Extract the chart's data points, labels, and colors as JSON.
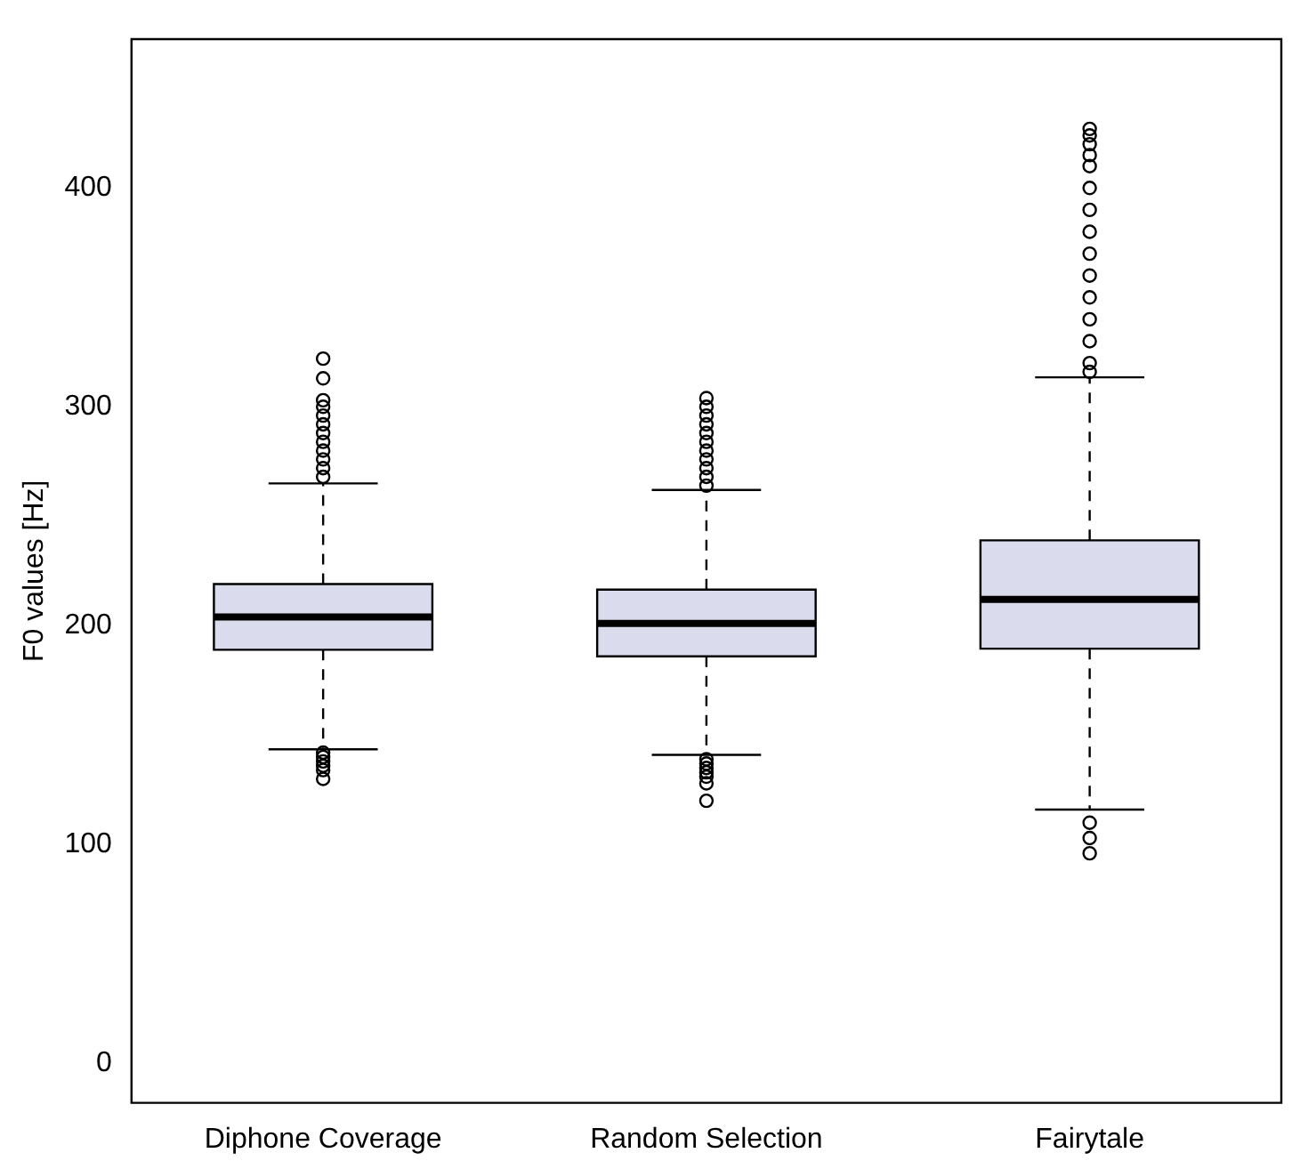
{
  "chart_data": {
    "type": "box",
    "ylabel": "F0 values [Hz]",
    "categories": [
      "Diphone Coverage",
      "Random Selection",
      "Fairytale"
    ],
    "color": "#dadcee",
    "ylim": [
      -18,
      468
    ],
    "yticks": [
      0,
      100,
      200,
      300,
      400
    ],
    "grid": false,
    "legend": false,
    "boxes": [
      {
        "low": 143.5,
        "q1": 189,
        "median": 204,
        "q3": 219,
        "high": 265,
        "outliers": [
          322,
          313,
          303,
          300,
          296,
          292,
          288,
          284,
          280,
          276,
          272,
          268,
          142,
          140,
          138,
          136,
          134,
          130
        ]
      },
      {
        "low": 141,
        "q1": 186,
        "median": 201,
        "q3": 216.5,
        "high": 262,
        "outliers": [
          304,
          300,
          296,
          292,
          288,
          284,
          280,
          276,
          272,
          268,
          264,
          139,
          137,
          135,
          133,
          131,
          128,
          120
        ]
      },
      {
        "low": 116,
        "q1": 189.5,
        "median": 212,
        "q3": 239,
        "high": 313.5,
        "outliers": [
          427,
          424,
          420,
          415,
          410,
          400,
          390,
          380,
          370,
          360,
          350,
          340,
          330,
          320,
          316,
          110,
          103,
          96
        ]
      }
    ]
  }
}
